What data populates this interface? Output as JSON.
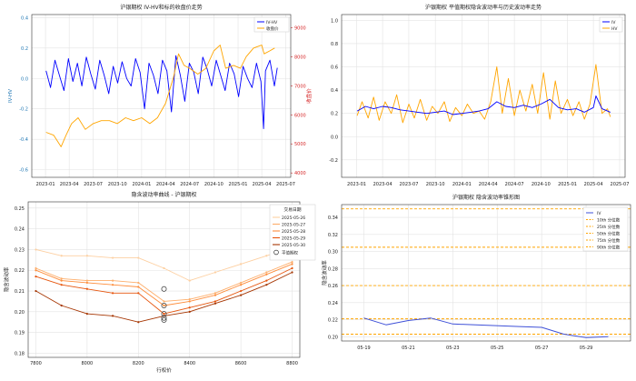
{
  "chart_data": [
    {
      "type": "line",
      "title": "沪银期权 IV-HV和标的收盘价走势",
      "ylabel": "IV-HV",
      "y2label": "收盘价",
      "ylim": [
        -0.65,
        0.42
      ],
      "y2lim": [
        3850,
        9450
      ],
      "yticks": [
        -0.6,
        -0.4,
        -0.2,
        0.0,
        0.2,
        0.4
      ],
      "yticklabels": [
        "-0.6",
        "-0.4",
        "-0.2",
        "0.0",
        "0.2",
        "0.4"
      ],
      "y2ticks": [
        4000,
        5000,
        6000,
        7000,
        8000,
        9000
      ],
      "y2ticklabels": [
        "4000",
        "5000",
        "6000",
        "7000",
        "8000",
        "9000"
      ],
      "xlim": [
        "2022-11-10",
        "2025-07-20"
      ],
      "xticks": [
        "2023-01",
        "2023-04",
        "2023-07",
        "2023-10",
        "2024-01",
        "2024-04",
        "2024-07",
        "2024-10",
        "2025-01",
        "2025-04",
        "2025-07"
      ],
      "legend": "top-right",
      "grid": true,
      "colors": {
        "primary": "#0000ff",
        "secondary": "#ffa500",
        "ytick": "#1f77b4",
        "y2tick": "#d62728"
      },
      "series": [
        {
          "name": "IV-HV",
          "axis": "left",
          "color": "#0000ff",
          "x": [
            "2023-01-03",
            "2023-01-20",
            "2023-02-06",
            "2023-02-23",
            "2023-03-12",
            "2023-03-29",
            "2023-04-15",
            "2023-05-02",
            "2023-05-19",
            "2023-06-05",
            "2023-06-22",
            "2023-07-09",
            "2023-07-26",
            "2023-08-12",
            "2023-08-29",
            "2023-09-15",
            "2023-10-02",
            "2023-10-19",
            "2023-11-05",
            "2023-11-22",
            "2023-12-09",
            "2023-12-26",
            "2024-01-12",
            "2024-01-29",
            "2024-02-15",
            "2024-03-03",
            "2024-03-20",
            "2024-04-06",
            "2024-04-23",
            "2024-05-10",
            "2024-05-27",
            "2024-06-13",
            "2024-06-30",
            "2024-07-17",
            "2024-08-03",
            "2024-08-20",
            "2024-09-06",
            "2024-09-23",
            "2024-10-10",
            "2024-10-27",
            "2024-11-13",
            "2024-11-30",
            "2024-12-17",
            "2025-01-03",
            "2025-01-20",
            "2025-02-06",
            "2025-02-23",
            "2025-03-12",
            "2025-03-29",
            "2025-04-08",
            "2025-04-15",
            "2025-05-02",
            "2025-05-19",
            "2025-05-30"
          ],
          "values": [
            0.05,
            -0.06,
            0.12,
            0.02,
            -0.08,
            0.13,
            -0.02,
            0.1,
            -0.05,
            0.14,
            0.03,
            -0.07,
            0.12,
            0.02,
            -0.1,
            0.08,
            -0.03,
            0.11,
            0.0,
            -0.05,
            0.13,
            0.04,
            -0.2,
            0.1,
            0.02,
            -0.1,
            0.12,
            0.05,
            -0.22,
            0.15,
            0.02,
            -0.15,
            0.1,
            0.04,
            -0.1,
            0.14,
            0.06,
            -0.05,
            0.12,
            0.02,
            -0.08,
            0.1,
            0.03,
            -0.12,
            0.08,
            0.0,
            -0.06,
            0.1,
            -0.02,
            -0.33,
            0.05,
            0.12,
            -0.05,
            0.07
          ]
        },
        {
          "name": "收盘价",
          "axis": "right",
          "color": "#ffa500",
          "x": [
            "2023-01-03",
            "2023-02-01",
            "2023-03-01",
            "2023-03-20",
            "2023-04-10",
            "2023-05-05",
            "2023-06-01",
            "2023-07-01",
            "2023-08-01",
            "2023-09-01",
            "2023-10-01",
            "2023-11-01",
            "2023-12-01",
            "2024-01-01",
            "2024-02-01",
            "2024-03-01",
            "2024-04-01",
            "2024-05-01",
            "2024-05-20",
            "2024-06-10",
            "2024-07-01",
            "2024-08-01",
            "2024-09-01",
            "2024-10-01",
            "2024-10-25",
            "2024-11-15",
            "2024-12-15",
            "2025-01-10",
            "2025-02-01",
            "2025-03-01",
            "2025-04-01",
            "2025-04-10",
            "2025-05-01",
            "2025-05-20"
          ],
          "values": [
            5400,
            5300,
            4900,
            5300,
            5700,
            5900,
            5500,
            5700,
            5800,
            5800,
            5700,
            5900,
            5800,
            5900,
            5700,
            5900,
            6400,
            7300,
            8100,
            7700,
            7600,
            7400,
            7600,
            8200,
            8400,
            7600,
            7700,
            7600,
            8000,
            8300,
            8400,
            8100,
            8200,
            8300
          ]
        }
      ]
    },
    {
      "type": "line",
      "title": "沪银期权 平值期权隐含波动率与历史波动率走势",
      "ylim": [
        -0.35,
        1.05
      ],
      "yticks": [
        -0.2,
        0.0,
        0.2,
        0.4,
        0.6,
        0.8,
        1.0
      ],
      "yticklabels": [
        "-0.2",
        "0.0",
        "0.2",
        "0.4",
        "0.6",
        "0.8",
        "1.0"
      ],
      "xlim": [
        "2022-11-10",
        "2025-07-20"
      ],
      "xticks": [
        "2023-01",
        "2023-04",
        "2023-07",
        "2023-10",
        "2024-01",
        "2024-04",
        "2024-07",
        "2024-10",
        "2025-01",
        "2025-04",
        "2025-07"
      ],
      "legend": "top-right",
      "grid": true,
      "series": [
        {
          "name": "IV",
          "color": "#0000ff",
          "x": [
            "2023-01-03",
            "2023-02-01",
            "2023-03-01",
            "2023-04-01",
            "2023-05-01",
            "2023-06-01",
            "2023-07-01",
            "2023-08-01",
            "2023-09-01",
            "2023-10-01",
            "2023-11-01",
            "2023-12-01",
            "2024-01-01",
            "2024-02-01",
            "2024-03-01",
            "2024-04-01",
            "2024-05-01",
            "2024-06-01",
            "2024-07-01",
            "2024-08-01",
            "2024-09-01",
            "2024-10-01",
            "2024-11-01",
            "2024-12-01",
            "2025-01-01",
            "2025-02-01",
            "2025-03-01",
            "2025-04-01",
            "2025-04-10",
            "2025-05-01",
            "2025-05-30"
          ],
          "values": [
            0.22,
            0.26,
            0.24,
            0.26,
            0.25,
            0.23,
            0.22,
            0.21,
            0.2,
            0.21,
            0.22,
            0.19,
            0.2,
            0.21,
            0.22,
            0.24,
            0.3,
            0.26,
            0.25,
            0.27,
            0.25,
            0.28,
            0.32,
            0.25,
            0.23,
            0.24,
            0.21,
            0.25,
            0.35,
            0.24,
            0.21
          ]
        },
        {
          "name": "HV",
          "color": "#ffa500",
          "x": [
            "2023-01-03",
            "2023-01-20",
            "2023-02-10",
            "2023-03-01",
            "2023-03-20",
            "2023-04-10",
            "2023-05-01",
            "2023-05-20",
            "2023-06-10",
            "2023-07-01",
            "2023-07-20",
            "2023-08-10",
            "2023-09-01",
            "2023-09-20",
            "2023-10-10",
            "2023-11-01",
            "2023-11-20",
            "2023-12-10",
            "2024-01-01",
            "2024-01-20",
            "2024-02-10",
            "2024-03-01",
            "2024-03-20",
            "2024-04-10",
            "2024-05-01",
            "2024-05-20",
            "2024-06-10",
            "2024-07-01",
            "2024-07-20",
            "2024-08-10",
            "2024-09-01",
            "2024-09-20",
            "2024-10-10",
            "2024-11-01",
            "2024-11-20",
            "2024-12-10",
            "2025-01-01",
            "2025-01-20",
            "2025-02-10",
            "2025-03-01",
            "2025-03-20",
            "2025-04-10",
            "2025-05-01",
            "2025-05-20",
            "2025-05-30"
          ],
          "values": [
            0.18,
            0.3,
            0.16,
            0.34,
            0.14,
            0.3,
            0.2,
            0.36,
            0.12,
            0.28,
            0.16,
            0.32,
            0.14,
            0.26,
            0.2,
            0.3,
            0.13,
            0.25,
            0.18,
            0.28,
            0.2,
            0.22,
            0.15,
            0.3,
            0.6,
            0.2,
            0.5,
            0.18,
            0.4,
            0.22,
            0.45,
            0.2,
            0.55,
            0.15,
            0.48,
            0.2,
            0.32,
            0.18,
            0.3,
            0.15,
            0.28,
            0.62,
            0.2,
            0.24,
            0.17
          ]
        }
      ]
    },
    {
      "type": "line",
      "title": "隐含波动率曲线 - 沪银期权",
      "xlabel": "行权价",
      "ylabel": "隐含波动率",
      "xlim": [
        7770,
        8830
      ],
      "ylim": [
        0.178,
        0.253
      ],
      "xticks": [
        7800,
        8000,
        8200,
        8400,
        8600,
        8800
      ],
      "xticklabels": [
        "7800",
        "8000",
        "8200",
        "8400",
        "8600",
        "8800"
      ],
      "yticks": [
        0.18,
        0.19,
        0.2,
        0.21,
        0.22,
        0.23,
        0.24,
        0.25
      ],
      "yticklabels": [
        "0.18",
        "0.19",
        "0.20",
        "0.21",
        "0.22",
        "0.23",
        "0.24",
        "0.25"
      ],
      "legend": "top-right",
      "legend_title": "交易日期",
      "atm_label": "平值期权",
      "grid": true,
      "strikes": [
        7800,
        7900,
        8000,
        8100,
        8200,
        8300,
        8400,
        8500,
        8600,
        8700,
        8800
      ],
      "series": [
        {
          "name": "2025-05-26",
          "color": "#fdd0a2",
          "values": [
            0.23,
            0.227,
            0.227,
            0.226,
            0.226,
            0.221,
            0.215,
            0.219,
            0.223,
            0.227,
            0.231
          ]
        },
        {
          "name": "2025-05-27",
          "color": "#fdae6b",
          "values": [
            0.221,
            0.216,
            0.215,
            0.215,
            0.214,
            0.205,
            0.206,
            0.209,
            0.214,
            0.219,
            0.224
          ]
        },
        {
          "name": "2025-05-28",
          "color": "#fd8d3c",
          "values": [
            0.22,
            0.215,
            0.214,
            0.213,
            0.212,
            0.203,
            0.205,
            0.208,
            0.213,
            0.218,
            0.223
          ]
        },
        {
          "name": "2025-05-29",
          "color": "#e6550d",
          "values": [
            0.217,
            0.213,
            0.211,
            0.209,
            0.209,
            0.199,
            0.202,
            0.205,
            0.21,
            0.215,
            0.221
          ]
        },
        {
          "name": "2025-05-30",
          "color": "#a63603",
          "values": [
            0.21,
            0.203,
            0.199,
            0.198,
            0.195,
            0.198,
            0.2,
            0.204,
            0.208,
            0.213,
            0.219
          ]
        }
      ],
      "atm_points": [
        {
          "x": 8300,
          "y": 0.211
        },
        {
          "x": 8300,
          "y": 0.203
        },
        {
          "x": 8300,
          "y": 0.199
        },
        {
          "x": 8300,
          "y": 0.197
        },
        {
          "x": 8300,
          "y": 0.196
        }
      ]
    },
    {
      "type": "line",
      "title": "沪银期权 隐含波动率锥形图",
      "ylabel": "隐含波动率",
      "xlim": [
        "2025-05-18",
        "2025-05-31"
      ],
      "ylim": [
        0.195,
        0.355
      ],
      "xticks": [
        "05-19",
        "05-21",
        "05-23",
        "05-25",
        "05-27",
        "05-29"
      ],
      "yticks": [
        0.2,
        0.22,
        0.24,
        0.26,
        0.28,
        0.3,
        0.32,
        0.34
      ],
      "yticklabels": [
        "0.20",
        "0.22",
        "0.24",
        "0.26",
        "0.28",
        "0.30",
        "0.32",
        "0.34"
      ],
      "legend": "top-right",
      "grid": true,
      "series": [
        {
          "name": "IV",
          "color": "#3f51d8",
          "x": [
            "2025-05-19",
            "2025-05-20",
            "2025-05-21",
            "2025-05-22",
            "2025-05-23",
            "2025-05-26",
            "2025-05-27",
            "2025-05-28",
            "2025-05-29",
            "2025-05-30"
          ],
          "values": [
            0.222,
            0.214,
            0.219,
            0.222,
            0.215,
            0.212,
            0.211,
            0.203,
            0.199,
            0.2
          ]
        }
      ],
      "percentiles": [
        {
          "name": "10th 分位数",
          "value": 0.203,
          "color": "#ffa500"
        },
        {
          "name": "25th 分位数",
          "value": 0.221,
          "color": "#ffa500"
        },
        {
          "name": "50th 分位数",
          "value": 0.26,
          "color": "#ffa500"
        },
        {
          "name": "75th 分位数",
          "value": 0.305,
          "color": "#ffa500"
        },
        {
          "name": "90th 分位数",
          "value": 0.35,
          "color": "#ffa500"
        }
      ]
    }
  ]
}
